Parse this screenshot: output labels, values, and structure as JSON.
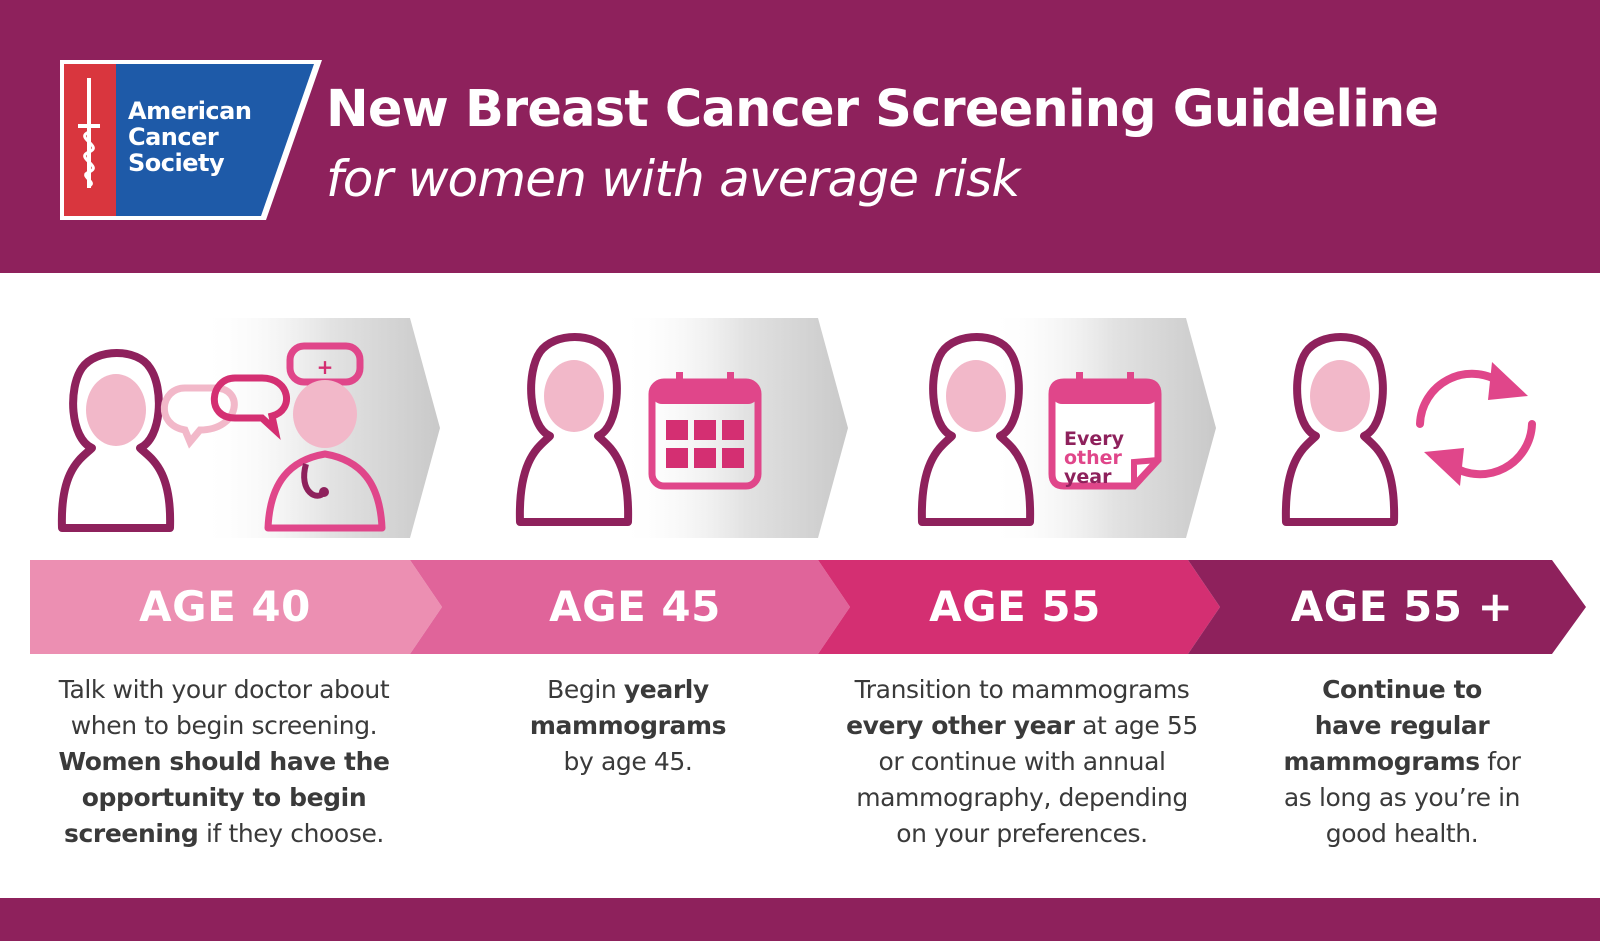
{
  "logo": {
    "lines": [
      "American",
      "Cancer",
      "Society"
    ]
  },
  "header": {
    "title": "New Breast Cancer Screening Guideline",
    "subtitle": "for women with average risk"
  },
  "calendar_badge": {
    "lines": [
      "Every",
      "other",
      "year"
    ]
  },
  "stages": [
    {
      "age": "AGE 40",
      "text": [
        {
          "t": "Talk with your doctor about",
          "b": false
        },
        {
          "t": "when to begin screening.",
          "b": false
        },
        {
          "t": "Women should have the",
          "b": true
        },
        {
          "t": "opportunity to begin",
          "b": true
        },
        {
          "t": "screening",
          "b": true,
          "rest": " if they choose."
        }
      ]
    },
    {
      "age": "AGE 45",
      "text": [
        {
          "t": "Begin ",
          "b": false,
          "bold_rest": "yearly"
        },
        {
          "t": "mammograms",
          "b": true
        },
        {
          "t": "by age 45.",
          "b": false
        }
      ]
    },
    {
      "age": "AGE 55",
      "text": [
        {
          "t": "Transition to mammograms",
          "b": false
        },
        {
          "t": "every other year",
          "b": true,
          "rest": " at age 55"
        },
        {
          "t": "or continue with annual",
          "b": false
        },
        {
          "t": "mammography, depending",
          "b": false
        },
        {
          "t": "on your preferences.",
          "b": false
        }
      ]
    },
    {
      "age": "AGE 55 +",
      "text": [
        {
          "t": "Continue to",
          "b": true
        },
        {
          "t": "have regular",
          "b": true
        },
        {
          "t": "mammograms",
          "b": true,
          "rest": " for"
        },
        {
          "t": "as long as you’re in",
          "b": false
        },
        {
          "t": "good health.",
          "b": false
        }
      ]
    }
  ],
  "colors": {
    "header_bg": "#8e215c",
    "band_1": "#ec8fb2",
    "band_2": "#e0649a",
    "band_3": "#d42f72",
    "band_4": "#8e215c",
    "woman_stroke": "#8e215c",
    "woman_face": "#f2b8c9",
    "accent": "#e0468a"
  }
}
